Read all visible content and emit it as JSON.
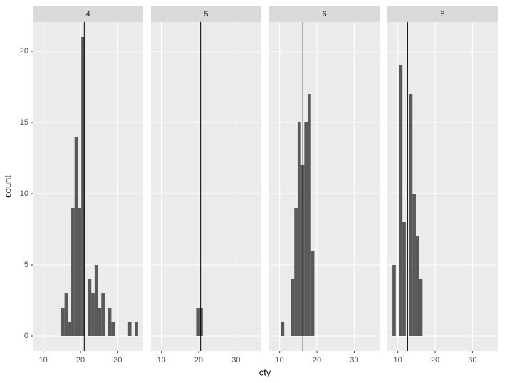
{
  "chart_data": {
    "type": "histogram",
    "xlabel": "cty",
    "ylabel": "count",
    "color": "#595959",
    "bins": [
      8.552,
      9.449,
      10.345,
      11.242,
      12.138,
      13.035,
      13.932,
      14.828,
      15.725,
      16.621,
      17.518,
      18.415,
      19.311,
      20.208,
      21.104,
      22.001,
      22.898,
      23.794,
      24.691,
      25.587,
      26.484,
      27.381,
      28.277,
      29.174,
      30.07,
      30.967,
      31.864,
      32.76,
      33.657,
      34.553,
      35.45
    ],
    "xlim": [
      7.2,
      36.8
    ],
    "xticks": [
      10,
      20,
      30
    ],
    "ylim": [
      -1.05,
      22.05
    ],
    "yticks": [
      0,
      5,
      10,
      15,
      20
    ],
    "grid": true,
    "facets": [
      {
        "label": "4",
        "mean": 21.01,
        "counts": [
          0,
          0,
          0,
          0,
          0,
          0,
          0,
          2,
          3,
          1,
          9,
          14,
          9,
          21,
          0,
          4,
          3,
          5,
          2,
          3,
          0,
          2,
          1,
          0,
          0,
          0,
          0,
          1,
          0,
          1
        ]
      },
      {
        "label": "5",
        "mean": 20.5,
        "counts": [
          0,
          0,
          0,
          0,
          0,
          0,
          0,
          0,
          0,
          0,
          0,
          0,
          2,
          2,
          0,
          0,
          0,
          0,
          0,
          0,
          0,
          0,
          0,
          0,
          0,
          0,
          0,
          0,
          0,
          0
        ]
      },
      {
        "label": "6",
        "mean": 16.22,
        "counts": [
          0,
          0,
          1,
          0,
          0,
          4,
          9,
          15,
          12,
          15,
          17,
          6,
          0,
          0,
          0,
          0,
          0,
          0,
          0,
          0,
          0,
          0,
          0,
          0,
          0,
          0,
          0,
          0,
          0,
          0
        ]
      },
      {
        "label": "8",
        "mean": 12.62,
        "counts": [
          5,
          0,
          19,
          8,
          0,
          17,
          10,
          7,
          4,
          0,
          0,
          0,
          0,
          0,
          0,
          0,
          0,
          0,
          0,
          0,
          0,
          0,
          0,
          0,
          0,
          0,
          0,
          0,
          0,
          0
        ]
      }
    ]
  }
}
